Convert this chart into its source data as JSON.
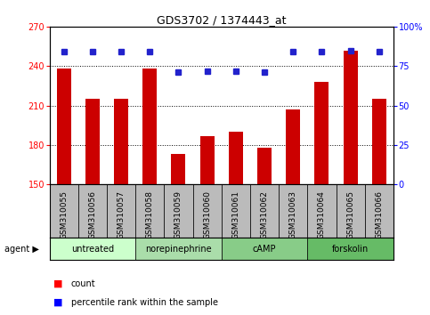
{
  "title": "GDS3702 / 1374443_at",
  "samples": [
    "GSM310055",
    "GSM310056",
    "GSM310057",
    "GSM310058",
    "GSM310059",
    "GSM310060",
    "GSM310061",
    "GSM310062",
    "GSM310063",
    "GSM310064",
    "GSM310065",
    "GSM310066"
  ],
  "bar_values": [
    238,
    215,
    215,
    238,
    173,
    187,
    190,
    178,
    207,
    228,
    252,
    215
  ],
  "percentile_values": [
    84,
    84,
    84,
    84,
    71,
    72,
    72,
    71,
    84,
    84,
    85,
    84
  ],
  "ylim_left": [
    150,
    270
  ],
  "ylim_right": [
    0,
    100
  ],
  "yticks_left": [
    150,
    180,
    210,
    240,
    270
  ],
  "yticks_right": [
    0,
    25,
    50,
    75,
    100
  ],
  "bar_color": "#cc0000",
  "dot_color": "#2222cc",
  "grid_color": "#000000",
  "agent_groups": [
    {
      "label": "untreated",
      "start": 0,
      "end": 3
    },
    {
      "label": "norepinephrine",
      "start": 3,
      "end": 6
    },
    {
      "label": "cAMP",
      "start": 6,
      "end": 9
    },
    {
      "label": "forskolin",
      "start": 9,
      "end": 12
    }
  ],
  "group_colors": [
    "#ccffcc",
    "#aaddaa",
    "#88cc88",
    "#66bb66"
  ],
  "agent_label": "agent ▶",
  "legend_count_label": "count",
  "legend_pct_label": "percentile rank within the sample",
  "background_color": "#ffffff",
  "tick_area_bg": "#bbbbbb",
  "bar_width": 0.5
}
